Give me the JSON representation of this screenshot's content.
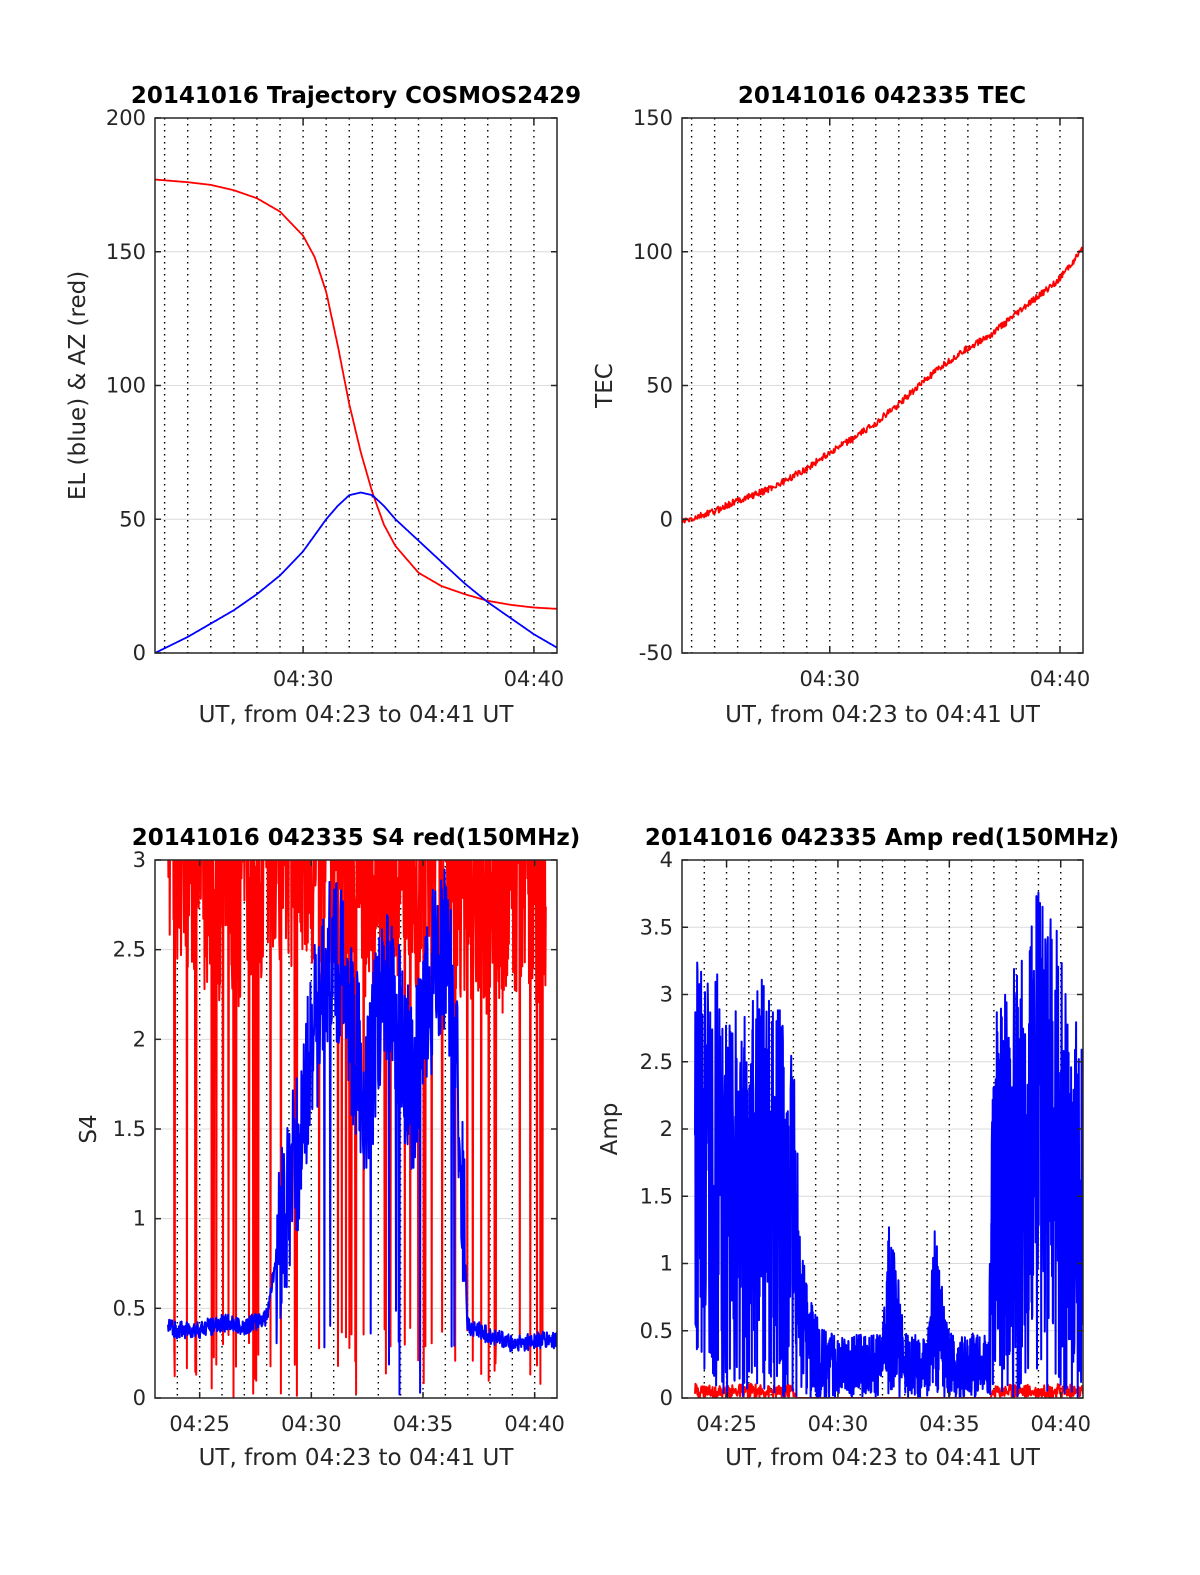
{
  "colors": {
    "red": "#ff0000",
    "blue": "#0000ff",
    "axis": "#262626",
    "grid": "#dcdcdc",
    "time_grid": "#000000"
  },
  "time_grid": {
    "type": "vertical dotted lines",
    "every_minutes": 1,
    "from": "04:24",
    "to": "04:40"
  },
  "chart_data": [
    {
      "type": "line",
      "title": "20141016 Trajectory COSMOS2429",
      "xlabel": "UT, from 04:23 to 04:41 UT",
      "ylabel": "EL (blue) & AZ (red)",
      "x_unit": "UT (HH:MM)",
      "xlim": [
        "04:23:35",
        "04:41:00"
      ],
      "ylim": [
        0,
        200
      ],
      "x_ticks": [
        "04:30",
        "04:40"
      ],
      "y_ticks": [
        "0",
        "50",
        "100",
        "150",
        "200"
      ],
      "grid": true,
      "legend": "none",
      "series": [
        {
          "color": "#ff0000",
          "x": [
            "04:23:35",
            "04:25:00",
            "04:26:00",
            "04:27:00",
            "04:28:00",
            "04:29:00",
            "04:30:00",
            "04:30:30",
            "04:31:00",
            "04:31:30",
            "04:32:00",
            "04:32:30",
            "04:33:00",
            "04:33:30",
            "04:34:00",
            "04:35:00",
            "04:36:00",
            "04:37:00",
            "04:38:00",
            "04:39:00",
            "04:40:00",
            "04:41:00"
          ],
          "values": [
            177,
            176,
            175,
            173,
            170,
            165,
            156,
            148,
            135,
            115,
            93,
            75,
            60,
            48,
            40,
            30,
            25,
            22,
            19.5,
            18,
            17,
            16.5
          ]
        },
        {
          "color": "#0000ff",
          "x": [
            "04:23:35",
            "04:25:00",
            "04:26:00",
            "04:27:00",
            "04:28:00",
            "04:29:00",
            "04:30:00",
            "04:30:30",
            "04:31:00",
            "04:31:30",
            "04:32:00",
            "04:32:30",
            "04:33:00",
            "04:33:30",
            "04:34:00",
            "04:35:00",
            "04:36:00",
            "04:37:00",
            "04:38:00",
            "04:39:00",
            "04:40:00",
            "04:41:00"
          ],
          "values": [
            0,
            6,
            11,
            16,
            22,
            29,
            38,
            44,
            50,
            55,
            59,
            60,
            59,
            55,
            50,
            42,
            34,
            26,
            19,
            13,
            7,
            2
          ]
        }
      ]
    },
    {
      "type": "line",
      "title": "20141016 042335 TEC",
      "xlabel": "UT, from 04:23 to 04:41 UT",
      "ylabel": "TEC",
      "x_unit": "UT (HH:MM)",
      "xlim": [
        "04:23:35",
        "04:41:00"
      ],
      "ylim": [
        -50,
        150
      ],
      "x_ticks": [
        "04:30",
        "04:40"
      ],
      "y_ticks": [
        "-50",
        "0",
        "50",
        "100",
        "150"
      ],
      "grid": true,
      "legend": "none",
      "series": [
        {
          "color": "#ff0000",
          "x": [
            "04:23:35",
            "04:24:00",
            "04:25:00",
            "04:26:00",
            "04:27:00",
            "04:28:00",
            "04:29:00",
            "04:30:00",
            "04:31:00",
            "04:32:00",
            "04:33:00",
            "04:34:00",
            "04:35:00",
            "04:36:00",
            "04:37:00",
            "04:38:00",
            "04:39:00",
            "04:40:00",
            "04:41:00"
          ],
          "values": [
            -1,
            0,
            3,
            7,
            10,
            14,
            19,
            25,
            30,
            36,
            43,
            51,
            58,
            64,
            69,
            76,
            83,
            90,
            101
          ]
        }
      ]
    },
    {
      "type": "line",
      "title": "20141016 042335 S4 red(150MHz)",
      "xlabel": "UT, from 04:23 to 04:41 UT",
      "ylabel": "S4",
      "x_unit": "UT (HH:MM)",
      "xlim": [
        "04:23:00",
        "04:41:00"
      ],
      "ylim": [
        0,
        3
      ],
      "x_ticks": [
        "04:25",
        "04:30",
        "04:35",
        "04:40"
      ],
      "y_ticks": [
        "0",
        "0.5",
        "1",
        "1.5",
        "2",
        "2.5",
        "3"
      ],
      "grid": true,
      "legend": "none",
      "series": [
        {
          "color": "#ff0000",
          "note_visual": "dense saturated noise between 0 and 3",
          "x": [
            "04:23:35",
            "04:24:30",
            "04:25:30",
            "04:26:30",
            "04:27:30",
            "04:28:30",
            "04:29:30",
            "04:30:30",
            "04:31:30",
            "04:32:30",
            "04:33:30",
            "04:34:30",
            "04:35:30",
            "04:36:30",
            "04:37:30",
            "04:38:30",
            "04:39:30",
            "04:40:30"
          ],
          "values": [
            2.8,
            2.7,
            2.6,
            2.5,
            2.6,
            2.7,
            2.8,
            2.7,
            2.6,
            2.6,
            2.7,
            2.6,
            2.7,
            2.6,
            2.5,
            2.5,
            2.6,
            2.5
          ]
        },
        {
          "color": "#0000ff",
          "x": [
            "04:23:35",
            "04:24:00",
            "04:25:00",
            "04:26:00",
            "04:27:00",
            "04:28:00",
            "04:28:30",
            "04:29:00",
            "04:29:30",
            "04:30:00",
            "04:30:30",
            "04:31:00",
            "04:31:30",
            "04:32:00",
            "04:32:30",
            "04:33:00",
            "04:33:30",
            "04:34:00",
            "04:34:30",
            "04:35:00",
            "04:35:30",
            "04:36:00",
            "04:36:30",
            "04:37:00",
            "04:38:00",
            "04:39:00",
            "04:40:00",
            "04:41:00"
          ],
          "values": [
            0.4,
            0.38,
            0.38,
            0.42,
            0.4,
            0.45,
            0.85,
            1.1,
            1.5,
            2.0,
            2.2,
            2.5,
            2.3,
            1.9,
            1.7,
            2.1,
            2.4,
            2.0,
            1.7,
            2.0,
            2.4,
            2.5,
            2.0,
            0.4,
            0.35,
            0.3,
            0.32,
            0.32
          ]
        }
      ]
    },
    {
      "type": "line",
      "title": "20141016 042335 Amp red(150MHz)",
      "xlabel": "UT, from 04:23 to 04:41 UT",
      "ylabel": "Amp",
      "x_unit": "UT (HH:MM)",
      "xlim": [
        "04:23:00",
        "04:41:00"
      ],
      "ylim": [
        0,
        4
      ],
      "x_ticks": [
        "04:25",
        "04:30",
        "04:35",
        "04:40"
      ],
      "y_ticks": [
        "0",
        "0.5",
        "1",
        "1.5",
        "2",
        "2.5",
        "3",
        "3.5",
        "4"
      ],
      "grid": true,
      "legend": "none",
      "series": [
        {
          "color": "#ff0000",
          "x": [
            "04:23:35",
            "04:25:00",
            "04:26:00",
            "04:27:00",
            "04:28:00",
            "04:28:10",
            "04:36:50",
            "04:37:00",
            "04:38:00",
            "04:39:00",
            "04:40:00",
            "04:41:00"
          ],
          "values": [
            0.06,
            0.05,
            0.06,
            0.05,
            0.06,
            0,
            0,
            0.05,
            0.06,
            0.05,
            0.06,
            0.05
          ]
        },
        {
          "color": "#0000ff",
          "x": [
            "04:23:35",
            "04:24:00",
            "04:24:30",
            "04:25:00",
            "04:25:30",
            "04:26:00",
            "04:26:30",
            "04:27:00",
            "04:27:30",
            "04:28:00",
            "04:28:30",
            "04:29:00",
            "04:29:30",
            "04:30:00",
            "04:31:00",
            "04:32:00",
            "04:32:20",
            "04:33:00",
            "04:34:00",
            "04:34:20",
            "04:35:00",
            "04:36:00",
            "04:36:45",
            "04:37:00",
            "04:37:30",
            "04:38:00",
            "04:38:30",
            "04:39:00",
            "04:39:30",
            "04:40:00",
            "04:40:30",
            "04:41:00"
          ],
          "values": [
            1.8,
            1.6,
            1.7,
            1.5,
            1.6,
            1.5,
            1.7,
            1.6,
            1.5,
            1.3,
            0.6,
            0.4,
            0.3,
            0.3,
            0.3,
            0.3,
            0.9,
            0.3,
            0.3,
            0.8,
            0.3,
            0.3,
            0.3,
            1.5,
            1.6,
            1.7,
            1.9,
            2.0,
            1.9,
            1.8,
            1.6,
            1.4
          ]
        }
      ]
    }
  ]
}
